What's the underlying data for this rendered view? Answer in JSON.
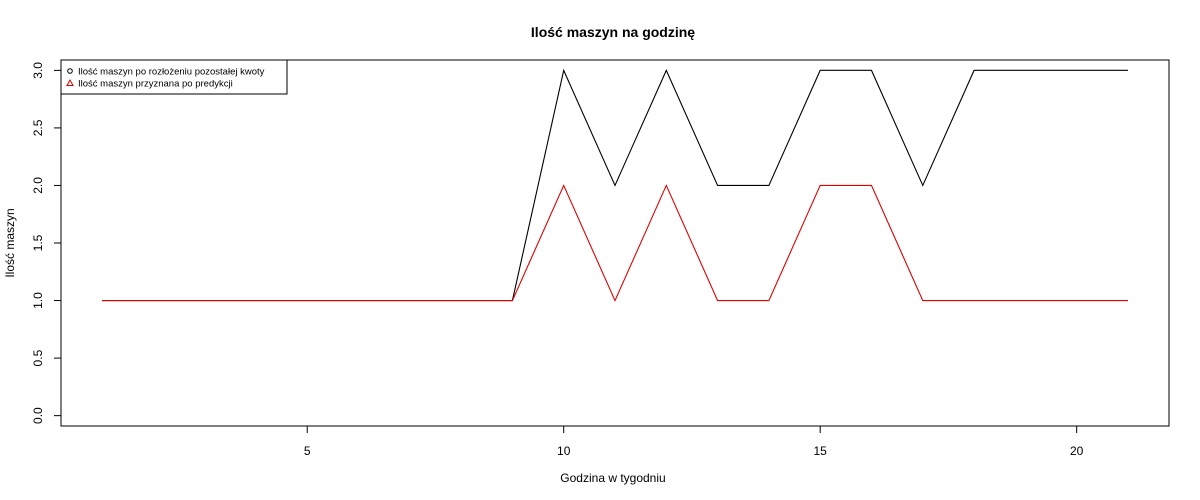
{
  "chart_data": {
    "type": "line",
    "title": "Ilość maszyn na godzinę",
    "xlabel": "Godzina w tygodniu",
    "ylabel": "Ilość maszyn",
    "xlim": [
      0.2,
      21.8
    ],
    "ylim": [
      -0.09,
      3.09
    ],
    "x_ticks": [
      5,
      10,
      15,
      20
    ],
    "x_tick_labels": [
      "5",
      "10",
      "15",
      "20"
    ],
    "y_ticks": [
      0,
      0.5,
      1,
      1.5,
      2,
      2.5,
      3
    ],
    "y_tick_labels": [
      "0.0",
      "0.5",
      "1.0",
      "1.5",
      "2.0",
      "2.5",
      "3.0"
    ],
    "grid": false,
    "legend_position": "top-left",
    "x": [
      1,
      2,
      3,
      4,
      5,
      6,
      7,
      8,
      9,
      10,
      11,
      12,
      13,
      14,
      15,
      16,
      17,
      18,
      19,
      20,
      21
    ],
    "series": [
      {
        "name": "Ilość maszyn po rozłożeniu pozostałej kwoty",
        "color": "#000000",
        "marker": "circle",
        "values": [
          1,
          1,
          1,
          1,
          1,
          1,
          1,
          1,
          1,
          3,
          2,
          3,
          2,
          2,
          3,
          3,
          2,
          3,
          3,
          3,
          3
        ]
      },
      {
        "name": "Ilość maszyn przyznana po predykcji",
        "color": "#dd0000",
        "marker": "triangle",
        "values": [
          1,
          1,
          1,
          1,
          1,
          1,
          1,
          1,
          1,
          2,
          1,
          2,
          1,
          1,
          2,
          2,
          1,
          1,
          1,
          1,
          1
        ]
      }
    ]
  }
}
